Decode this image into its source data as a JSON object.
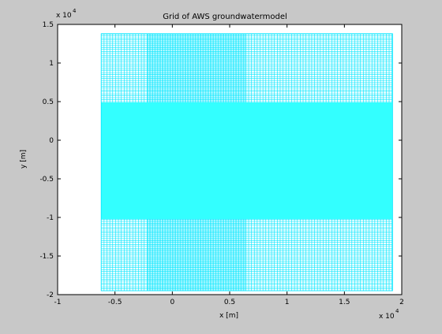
{
  "chart_data": {
    "type": "grid",
    "title": "Grid of AWS groundwatermodel",
    "xlabel": "x [m]",
    "ylabel": "y [m]",
    "xlim": [
      -10000,
      20000
    ],
    "ylim": [
      -20000,
      15000
    ],
    "x_ticks": [
      -10000,
      -5000,
      0,
      5000,
      10000,
      15000,
      20000
    ],
    "x_tick_labels": [
      "-1",
      "-0.5",
      "0",
      "0.5",
      "1",
      "1.5",
      "2"
    ],
    "y_ticks": [
      -20000,
      -15000,
      -10000,
      -5000,
      0,
      5000,
      10000,
      15000
    ],
    "y_tick_labels": [
      "-2",
      "-1.5",
      "-1",
      "-0.5",
      "0",
      "0.5",
      "1",
      "1.5"
    ],
    "x_scale_label": "x 10",
    "y_scale_label": "x 10",
    "scale_exponent": "4",
    "grid_color": "#00e6ff",
    "fill_color": "#33ffff",
    "grid_extent": {
      "x": [
        -6200,
        19200
      ],
      "y": [
        -19500,
        13800
      ]
    },
    "dense_band_y": [
      -10200,
      4900
    ],
    "x_column_zones": [
      {
        "x": [
          -6200,
          -2200
        ],
        "spacing": 250
      },
      {
        "x": [
          -2200,
          6400
        ],
        "spacing": 100
      },
      {
        "x": [
          6400,
          19200
        ],
        "spacing": 250
      }
    ],
    "y_row_spacing": 250
  }
}
